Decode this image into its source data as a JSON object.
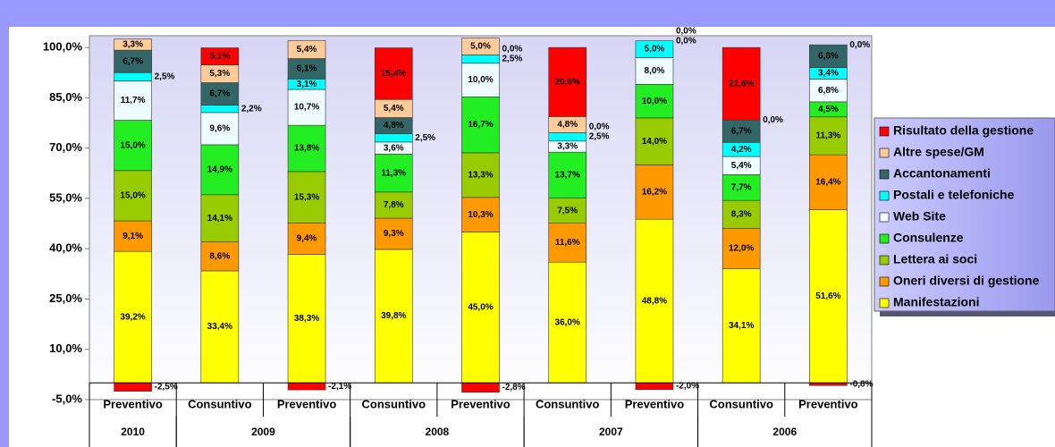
{
  "chart_data": {
    "type": "stacked_bar",
    "categories": [
      "Preventivo",
      "Consuntivo",
      "Preventivo",
      "Consuntivo",
      "Preventivo",
      "Consuntivo",
      "Preventivo",
      "Consuntivo",
      "Preventivo"
    ],
    "category_groups": [
      {
        "name": "2010",
        "span": 1
      },
      {
        "name": "2009",
        "span": 2
      },
      {
        "name": "2008",
        "span": 2
      },
      {
        "name": "2007",
        "span": 2
      },
      {
        "name": "2006",
        "span": 2
      }
    ],
    "series": [
      {
        "name": "Manifestazioni",
        "color": "#ffff00",
        "values": [
          39.2,
          33.4,
          38.3,
          39.8,
          45.0,
          36.0,
          48.8,
          34.1,
          51.6
        ],
        "value_labels": [
          "39,2%",
          "33,4%",
          "38,3%",
          "39,8%",
          "45,0%",
          "36,0%",
          "48,8%",
          "34,1%",
          "51,6%"
        ]
      },
      {
        "name": "Oneri diversi di gestione",
        "color": "#ff9900",
        "values": [
          9.1,
          8.6,
          9.4,
          9.3,
          10.3,
          11.6,
          16.2,
          12.0,
          16.4
        ],
        "value_labels": [
          "9,1%",
          "8,6%",
          "9,4%",
          "9,3%",
          "10,3%",
          "11,6%",
          "16,2%",
          "12,0%",
          "16,4%"
        ]
      },
      {
        "name": "Lettera ai soci",
        "color": "#99cc00",
        "values": [
          15.0,
          14.1,
          15.3,
          7.8,
          13.3,
          7.5,
          14.0,
          8.3,
          11.3
        ],
        "value_labels": [
          "15,0%",
          "14,1%",
          "15,3%",
          "7,8%",
          "13,3%",
          "7,5%",
          "14,0%",
          "8,3%",
          "11,3%"
        ]
      },
      {
        "name": "Consulenze",
        "color": "#22ee22",
        "values": [
          15.0,
          14.9,
          13.8,
          11.3,
          16.7,
          13.7,
          10.0,
          7.7,
          4.5
        ],
        "value_labels": [
          "15,0%",
          "14,9%",
          "13,8%",
          "11,3%",
          "16,7%",
          "13,7%",
          "10,0%",
          "7,7%",
          "4,5%"
        ]
      },
      {
        "name": "Web Site",
        "color": "#eefcff",
        "values": [
          11.7,
          9.6,
          10.7,
          3.6,
          10.0,
          3.3,
          8.0,
          5.4,
          6.8
        ],
        "value_labels": [
          "11,7%",
          "9,6%",
          "10,7%",
          "3,6%",
          "10,0%",
          "3,3%",
          "8,0%",
          "5,4%",
          "6,8%"
        ]
      },
      {
        "name": "Postali e telefoniche",
        "color": "#00ffff",
        "values": [
          2.5,
          2.2,
          3.1,
          2.5,
          2.5,
          2.5,
          5.0,
          4.2,
          3.4
        ],
        "value_labels": [
          "2,5%",
          "2,2%",
          "3,1%",
          "2,5%",
          "2,5%",
          "2,5%",
          "5,0%",
          "4,2%",
          "3,4%"
        ]
      },
      {
        "name": "Accantonamenti",
        "color": "#336666",
        "values": [
          6.7,
          6.7,
          6.1,
          4.8,
          0.0,
          0.0,
          0.0,
          6.7,
          6.8
        ],
        "value_labels": [
          "6,7%",
          "6,7%",
          "6,1%",
          "4,8%",
          "0,0%",
          "0,0%",
          "0,0%",
          "6,7%",
          "6,8%"
        ]
      },
      {
        "name": "Altre spese/GM",
        "color": "#ffcc99",
        "values": [
          3.3,
          5.3,
          5.4,
          5.4,
          5.0,
          4.8,
          0.0,
          0.0,
          0.0
        ],
        "value_labels": [
          "3,3%",
          "5,3%",
          "5,4%",
          "5,4%",
          "5,0%",
          "4,8%",
          "0,0%",
          "0,0%",
          "0,0%"
        ]
      },
      {
        "name": "Risultato della gestione",
        "color": "#ff0000",
        "values": [
          -2.5,
          5.1,
          -2.1,
          15.4,
          -2.8,
          20.6,
          -2.0,
          21.6,
          -0.8
        ],
        "value_labels": [
          "-2,5%",
          "5,1%",
          "-2,1%",
          "15,4%",
          "-2,8%",
          "20,6%",
          "-2,0%",
          "21,6%",
          "-0,8%"
        ]
      }
    ],
    "ylim": [
      -5,
      103.5
    ],
    "yticks": [
      {
        "value": -5,
        "label": "-5,0%"
      },
      {
        "value": 10,
        "label": "10,0%"
      },
      {
        "value": 25,
        "label": "25,0%"
      },
      {
        "value": 40,
        "label": "40,0%"
      },
      {
        "value": 55,
        "label": "55,0%"
      },
      {
        "value": 70,
        "label": "70,0%"
      },
      {
        "value": 85,
        "label": "85,0%"
      },
      {
        "value": 100,
        "label": "100,0%"
      }
    ],
    "legend_position": "right",
    "grid": false
  }
}
